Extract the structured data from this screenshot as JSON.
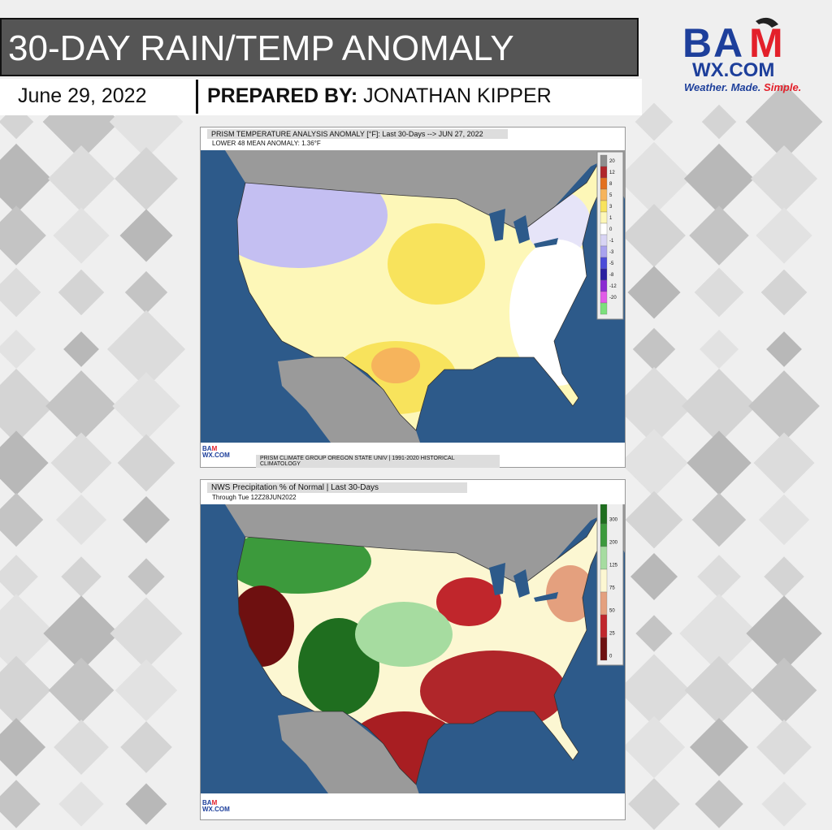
{
  "header": {
    "title": "30-DAY RAIN/TEMP ANOMALY",
    "date": "June 29, 2022",
    "prepared_label": "PREPARED BY:",
    "prepared_name": "JONATHAN KIPPER"
  },
  "logo": {
    "brand_b": "B",
    "brand_a": "A",
    "brand_m": "M",
    "site": "WX.COM",
    "tagline": [
      "Weather.",
      "Made.",
      "Simple."
    ]
  },
  "maps": [
    {
      "title": "PRISM TEMPERATURE ANALYSIS ANOMALY [°F]: Last 30-Days --> JUN 27, 2022",
      "subtitle": "LOWER 48 MEAN ANOMALY: 1.36°F",
      "footer": "PRISM CLIMATE GROUP OREGON STATE UNIV | 1991-2020 HISTORICAL CLIMATOLOGY",
      "legend": [
        "20",
        "12",
        "8",
        "5",
        "3",
        "1",
        "0",
        "-1",
        "-3",
        "-5",
        "-8",
        "-12",
        "-20"
      ]
    },
    {
      "title": "NWS Precipitation % of Normal | Last 30-Days",
      "subtitle": "Through Tue 12Z28JUN2022",
      "legend": [
        "300",
        "200",
        "125",
        "75",
        "50",
        "25",
        "0"
      ]
    }
  ]
}
